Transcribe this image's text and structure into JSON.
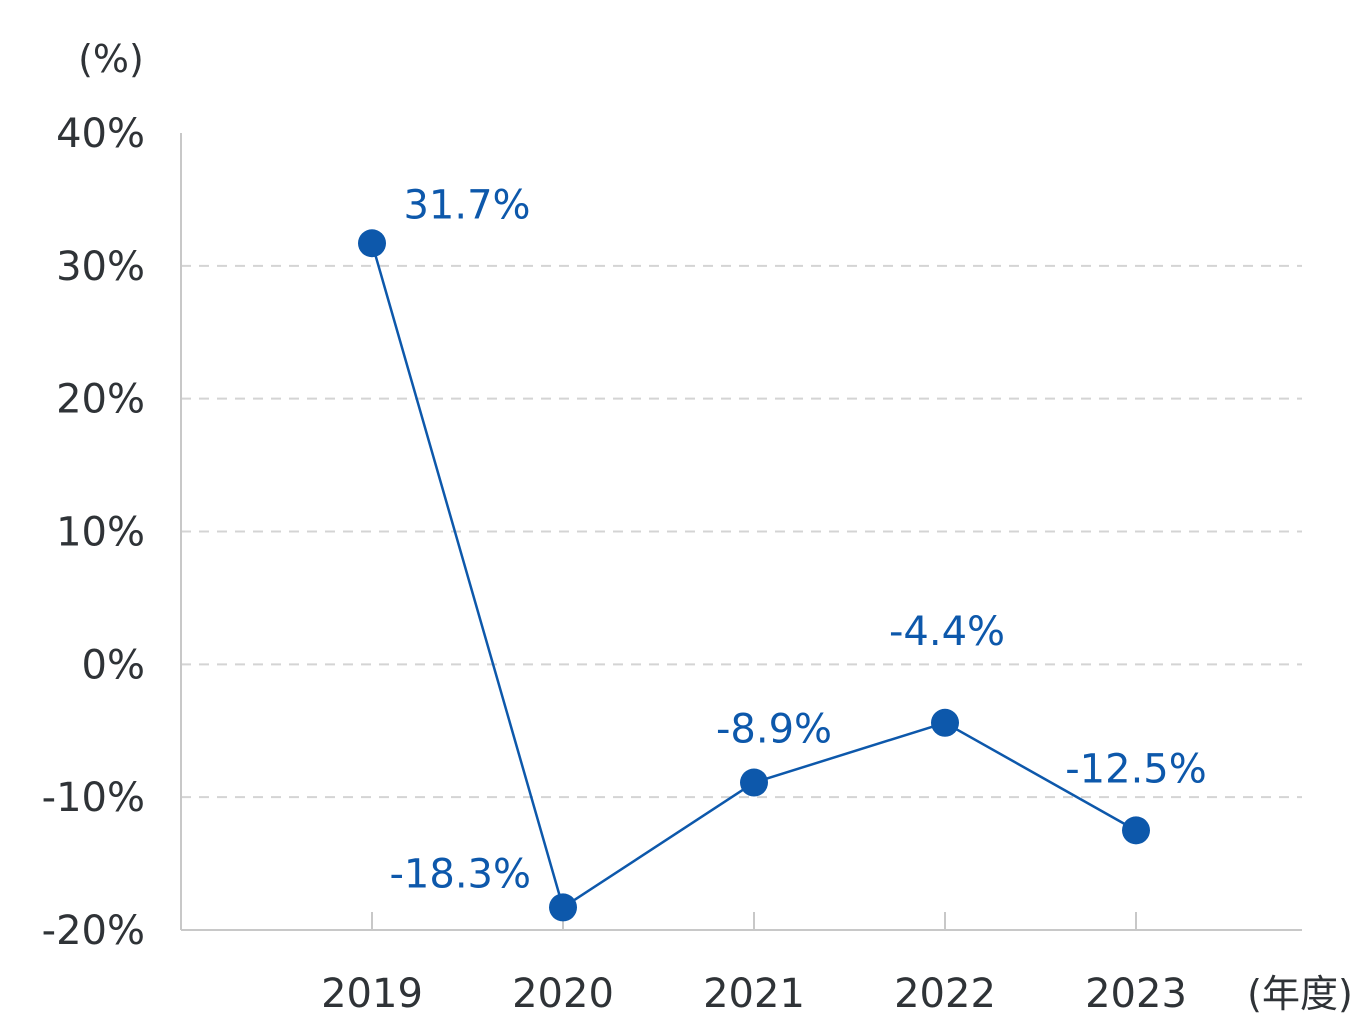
{
  "chart_data": {
    "type": "line",
    "y_unit_label": "(%)",
    "x_unit_label": "(年度)",
    "categories": [
      "2019",
      "2020",
      "2021",
      "2022",
      "2023"
    ],
    "series": [
      {
        "values": [
          31.7,
          -18.3,
          -8.9,
          -4.4,
          -12.5
        ],
        "data_labels": [
          "31.7%",
          "-18.3%",
          "-8.9%",
          "-4.4%",
          "-12.5%"
        ],
        "color": "#0d58ab"
      }
    ],
    "ylim": [
      -20,
      40
    ],
    "y_ticks": [
      40,
      30,
      20,
      10,
      0,
      -10,
      -20
    ],
    "y_tick_labels": [
      "40%",
      "30%",
      "20%",
      "10%",
      "0%",
      "-10%",
      "-20%"
    ],
    "grid": true,
    "colors": {
      "axis": "#c8c8c8",
      "grid": "#d4d4d4",
      "text": "#2f3337",
      "accent": "#0d58ab"
    }
  }
}
